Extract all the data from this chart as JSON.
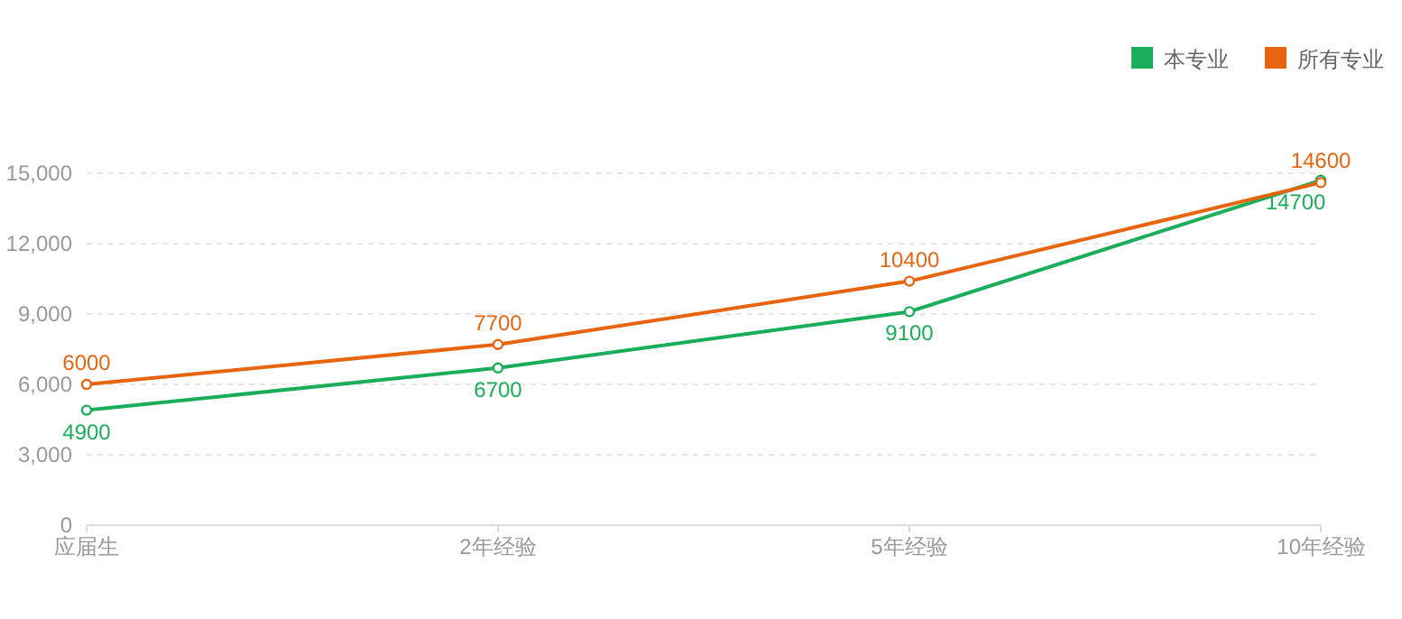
{
  "chart_data": {
    "type": "line",
    "categories": [
      "应届生",
      "2年经验",
      "5年经验",
      "10年经验"
    ],
    "series": [
      {
        "name": "本专业",
        "color": "#1aad5a",
        "values": [
          4900,
          6700,
          9100,
          14700
        ]
      },
      {
        "name": "所有专业",
        "color": "#e8650f",
        "values": [
          6000,
          7700,
          10400,
          14600
        ]
      }
    ],
    "ylim": [
      0,
      15000
    ],
    "yticks": [
      {
        "value": 0,
        "label": "0"
      },
      {
        "value": 3000,
        "label": "3,000"
      },
      {
        "value": 6000,
        "label": "6,000"
      },
      {
        "value": 9000,
        "label": "9,000"
      },
      {
        "value": 12000,
        "label": "12,000"
      },
      {
        "value": 15000,
        "label": "15,000"
      }
    ],
    "grid": "y",
    "legend": "top right",
    "marker": "circle",
    "line_style": "solid",
    "data_labels": true
  }
}
